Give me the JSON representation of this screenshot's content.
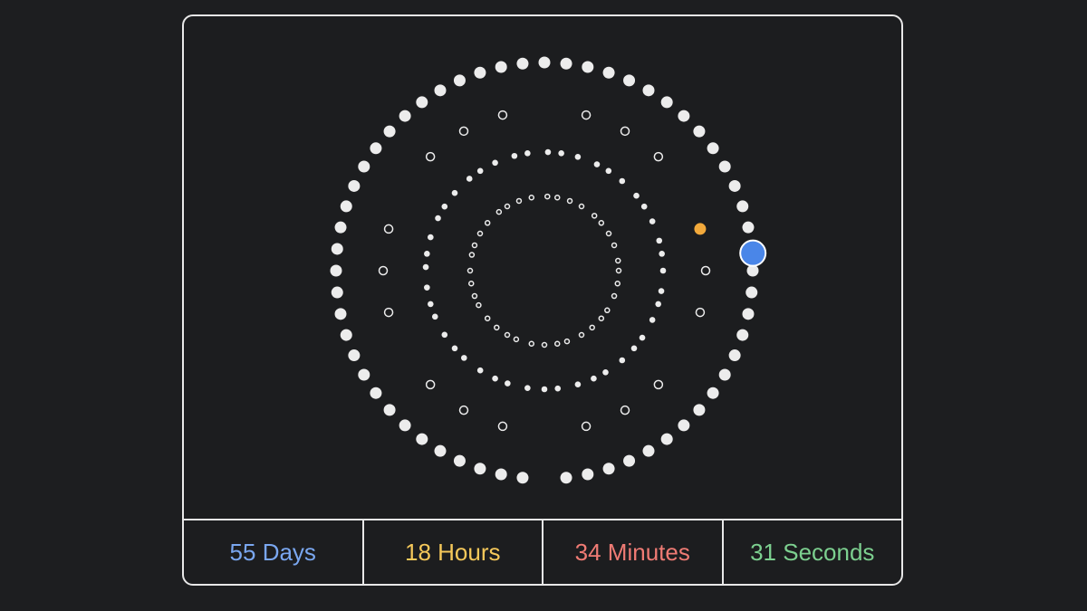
{
  "countdown": {
    "days": {
      "label": "55 Days",
      "color": "#7aa7f0"
    },
    "hours": {
      "label": "18 Hours",
      "color": "#f5c85a"
    },
    "minutes": {
      "label": "34 Minutes",
      "color": "#ef7b74"
    },
    "seconds": {
      "label": "31 Seconds",
      "color": "#7ccf8f"
    }
  },
  "dial": {
    "dot_color": "#ececec",
    "day_marker_color": "#4a86e8",
    "hour_marker_color": "#f2a93b"
  }
}
